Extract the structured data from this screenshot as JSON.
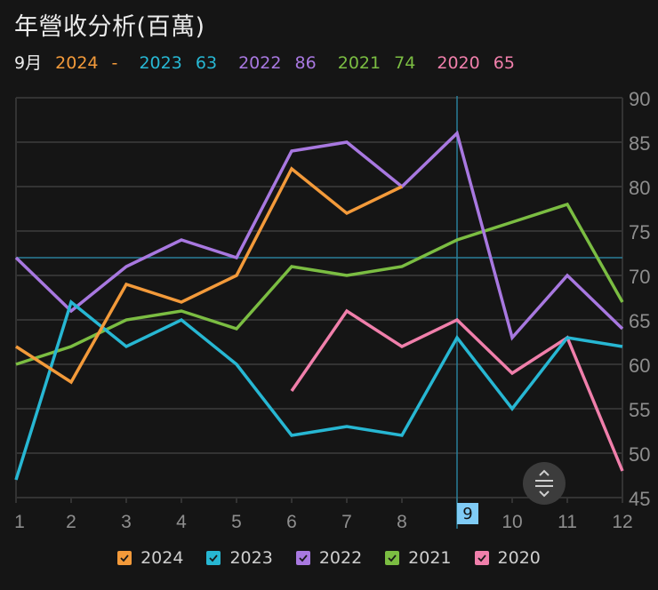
{
  "header": {
    "title": "年營收分析(百萬)"
  },
  "summary": {
    "month_label": "9月",
    "items": [
      {
        "year": "2024",
        "value": "-",
        "color": "#f39a3a"
      },
      {
        "year": "2023",
        "value": "63",
        "color": "#27b7d3"
      },
      {
        "year": "2022",
        "value": "86",
        "color": "#a878e0"
      },
      {
        "year": "2021",
        "value": "74",
        "color": "#7bbd42"
      },
      {
        "year": "2020",
        "value": "65",
        "color": "#f07fab"
      }
    ]
  },
  "crosshair": {
    "month": 9,
    "value": 72,
    "badge_label": "9",
    "color": "#2a7f99"
  },
  "legend": [
    {
      "label": "2024",
      "color": "#f39a3a",
      "checked": true
    },
    {
      "label": "2023",
      "color": "#27b7d3",
      "checked": true
    },
    {
      "label": "2022",
      "color": "#a878e0",
      "checked": true
    },
    {
      "label": "2021",
      "color": "#7bbd42",
      "checked": true
    },
    {
      "label": "2020",
      "color": "#f07fab",
      "checked": true
    }
  ],
  "controls": {
    "scroll_button_icon": "expand-collapse-icon"
  },
  "chart_data": {
    "type": "line",
    "title": "年營收分析(百萬)",
    "xlabel": "",
    "ylabel": "",
    "categories": [
      "1",
      "2",
      "3",
      "4",
      "5",
      "6",
      "7",
      "8",
      "9",
      "10",
      "11",
      "12"
    ],
    "ylim": [
      45,
      90
    ],
    "yticks": [
      45,
      50,
      55,
      60,
      65,
      70,
      75,
      80,
      85,
      90
    ],
    "y_axis_position": "right",
    "grid": true,
    "legend_position": "bottom",
    "series": [
      {
        "name": "2024",
        "color": "#f39a3a",
        "values": [
          62,
          58,
          69,
          67,
          70,
          82,
          77,
          80,
          null,
          null,
          null,
          null
        ]
      },
      {
        "name": "2023",
        "color": "#27b7d3",
        "values": [
          47,
          67,
          62,
          65,
          60,
          52,
          53,
          52,
          63,
          55,
          63,
          62
        ]
      },
      {
        "name": "2022",
        "color": "#a878e0",
        "values": [
          72,
          66,
          71,
          74,
          72,
          84,
          85,
          80,
          86,
          63,
          70,
          64
        ]
      },
      {
        "name": "2021",
        "color": "#7bbd42",
        "values": [
          60,
          62,
          65,
          66,
          64,
          71,
          70,
          71,
          74,
          76,
          78,
          67
        ]
      },
      {
        "name": "2020",
        "color": "#f07fab",
        "values": [
          null,
          null,
          null,
          null,
          null,
          57,
          66,
          62,
          65,
          59,
          63,
          48
        ]
      }
    ]
  }
}
